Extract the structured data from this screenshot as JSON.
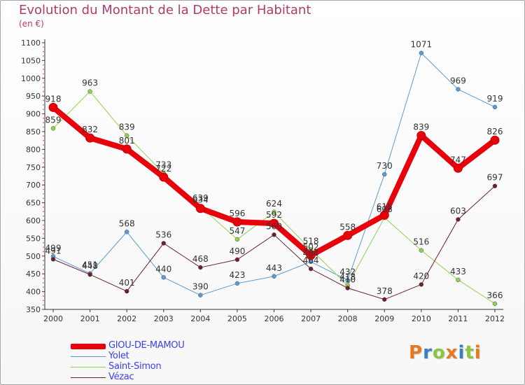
{
  "title": "Evolution du Montant de la Dette par Habitant",
  "subtitle": "(en €)",
  "logo": {
    "text": "Proxiti",
    "letter_colors": [
      "#e87722",
      "#3a7fc4",
      "#8cc63f",
      "#e87722",
      "#3a7fc4",
      "#8cc63f",
      "#e87722"
    ]
  },
  "chart_data": {
    "type": "line",
    "title": "Evolution du Montant de la Dette par Habitant",
    "ylabel": "(en €)",
    "xlabel": "",
    "x": [
      "2000",
      "2001",
      "2002",
      "2003",
      "2004",
      "2005",
      "2006",
      "2007",
      "2008",
      "2009",
      "2010",
      "2011",
      "2012"
    ],
    "ylim": [
      350,
      1100
    ],
    "yticks": [
      350,
      400,
      450,
      500,
      550,
      600,
      650,
      700,
      750,
      800,
      850,
      900,
      950,
      1000,
      1050,
      1100
    ],
    "grid": false,
    "legend_position": "bottom-left",
    "series": [
      {
        "name": "GIOU-DE-MAMOU",
        "color": "#e8000b",
        "values": [
          918,
          832,
          801,
          722,
          634,
          596,
          592,
          502,
          558,
          615,
          839,
          747,
          826
        ]
      },
      {
        "name": "Yolet",
        "color": "#5b9bd5",
        "values": [
          499,
          451,
          568,
          440,
          390,
          423,
          443,
          484,
          432,
          730,
          1071,
          969,
          919
        ]
      },
      {
        "name": "Saint-Simon",
        "color": "#8fd14f",
        "values": [
          859,
          963,
          839,
          733,
          639,
          547,
          624,
          518,
          418,
          608,
          516,
          433,
          366
        ]
      },
      {
        "name": "Vézac",
        "color": "#6b1f2a",
        "values": [
          491,
          448,
          401,
          536,
          468,
          490,
          560,
          464,
          410,
          378,
          420,
          603,
          697
        ]
      }
    ]
  }
}
